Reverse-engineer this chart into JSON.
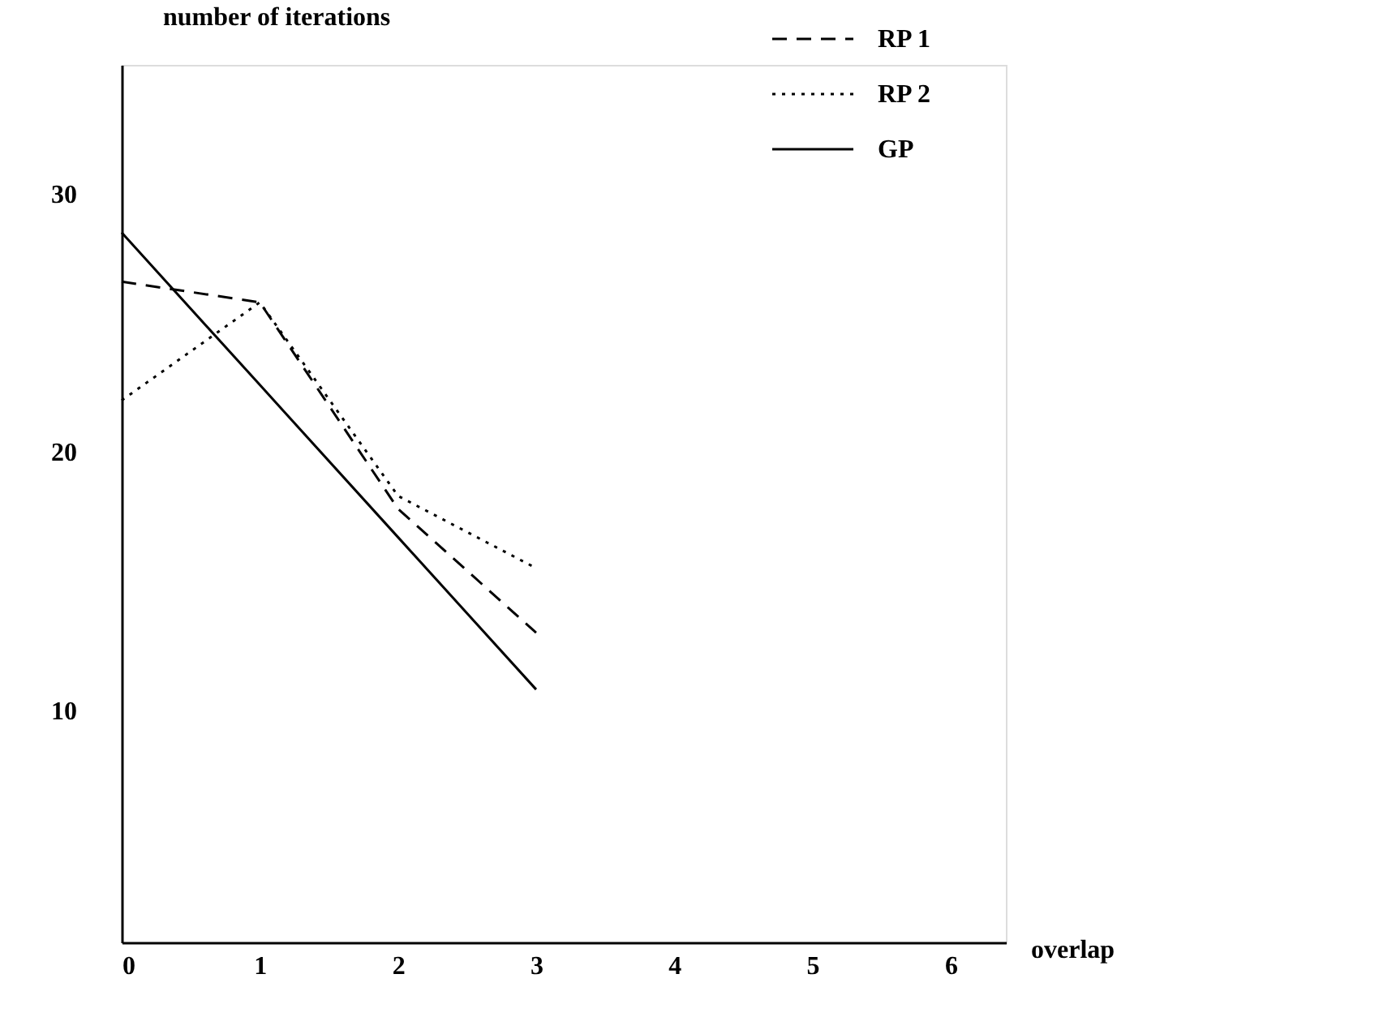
{
  "chart_data": {
    "type": "line",
    "ylabel": "number of iterations",
    "xlabel": "overlap",
    "x": [
      0,
      1,
      2,
      3
    ],
    "series": [
      {
        "name": "RP 1",
        "color": "#000000",
        "line_style": "dashed",
        "values": [
          26.6,
          25.8,
          17.8,
          13.0
        ]
      },
      {
        "name": "RP 2",
        "color": "#000000",
        "line_style": "dotted",
        "values": [
          22.0,
          25.8,
          18.3,
          15.5
        ]
      },
      {
        "name": "GP",
        "color": "#000000",
        "line_style": "solid",
        "values": [
          28.5,
          22.6,
          16.7,
          10.8
        ]
      }
    ],
    "xlim": [
      0,
      6.4
    ],
    "xticks": [
      0,
      1,
      2,
      3,
      4,
      5,
      6
    ],
    "ylim": [
      1,
      35
    ],
    "yticks": [
      10,
      20,
      30
    ],
    "grid": false,
    "legend": "top right",
    "marker": "none"
  }
}
